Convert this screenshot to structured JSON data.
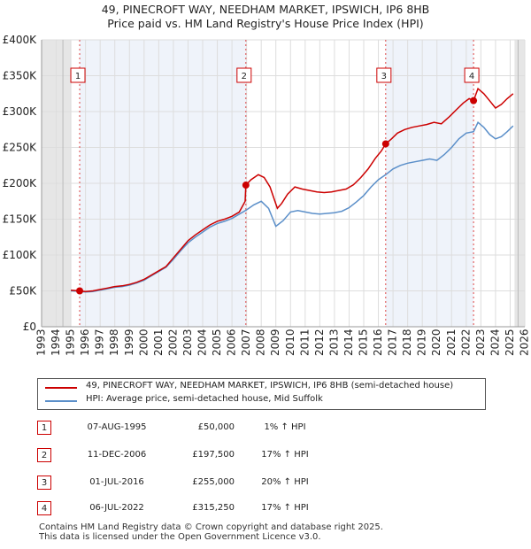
{
  "title_line1": "49, PINECROFT WAY, NEEDHAM MARKET, IPSWICH, IP6 8HB",
  "title_line2": "Price paid vs. HM Land Registry's House Price Index (HPI)",
  "chart_data": {
    "type": "line",
    "xlim": [
      1993,
      2026
    ],
    "ylim": [
      0,
      400000
    ],
    "x_ticks": [
      1993,
      1994,
      1995,
      1996,
      1997,
      1998,
      1999,
      2000,
      2001,
      2002,
      2003,
      2004,
      2005,
      2006,
      2007,
      2008,
      2009,
      2010,
      2011,
      2012,
      2013,
      2014,
      2015,
      2016,
      2017,
      2018,
      2019,
      2020,
      2021,
      2022,
      2023,
      2024,
      2025,
      2026
    ],
    "y_ticks": [
      {
        "value": 0,
        "label": "£0"
      },
      {
        "value": 50000,
        "label": "£50K"
      },
      {
        "value": 100000,
        "label": "£100K"
      },
      {
        "value": 150000,
        "label": "£150K"
      },
      {
        "value": 200000,
        "label": "£200K"
      },
      {
        "value": 250000,
        "label": "£250K"
      },
      {
        "value": 300000,
        "label": "£300K"
      },
      {
        "value": 350000,
        "label": "£350K"
      },
      {
        "value": 400000,
        "label": "£400K"
      }
    ],
    "data_range": [
      1995.0,
      2025.3
    ],
    "grid": true,
    "series": [
      {
        "name": "49, PINECROFT WAY, NEEDHAM MARKET, IPSWICH, IP6 8HB (semi-detached house)",
        "color": "#cc0000",
        "points": [
          [
            1995.0,
            51000
          ],
          [
            1995.6,
            50000
          ],
          [
            1996.0,
            49000
          ],
          [
            1996.5,
            50000
          ],
          [
            1997.0,
            52000
          ],
          [
            1997.5,
            54000
          ],
          [
            1998.0,
            56000
          ],
          [
            1998.5,
            57000
          ],
          [
            1999.0,
            59000
          ],
          [
            1999.5,
            62000
          ],
          [
            2000.0,
            66000
          ],
          [
            2000.5,
            72000
          ],
          [
            2001.0,
            78000
          ],
          [
            2001.5,
            84000
          ],
          [
            2002.0,
            96000
          ],
          [
            2002.5,
            108000
          ],
          [
            2003.0,
            120000
          ],
          [
            2003.5,
            128000
          ],
          [
            2004.0,
            135000
          ],
          [
            2004.5,
            142000
          ],
          [
            2005.0,
            147000
          ],
          [
            2005.5,
            150000
          ],
          [
            2006.0,
            154000
          ],
          [
            2006.5,
            160000
          ],
          [
            2006.9,
            175000
          ],
          [
            2006.95,
            197500
          ],
          [
            2007.3,
            205000
          ],
          [
            2007.8,
            212000
          ],
          [
            2008.2,
            208000
          ],
          [
            2008.6,
            195000
          ],
          [
            2009.1,
            165000
          ],
          [
            2009.4,
            172000
          ],
          [
            2009.8,
            185000
          ],
          [
            2010.3,
            195000
          ],
          [
            2010.8,
            192000
          ],
          [
            2011.3,
            190000
          ],
          [
            2011.8,
            188000
          ],
          [
            2012.3,
            187000
          ],
          [
            2012.8,
            188000
          ],
          [
            2013.3,
            190000
          ],
          [
            2013.8,
            192000
          ],
          [
            2014.3,
            198000
          ],
          [
            2014.8,
            208000
          ],
          [
            2015.3,
            220000
          ],
          [
            2015.8,
            235000
          ],
          [
            2016.2,
            245000
          ],
          [
            2016.5,
            255000
          ],
          [
            2016.9,
            262000
          ],
          [
            2017.3,
            270000
          ],
          [
            2017.8,
            275000
          ],
          [
            2018.3,
            278000
          ],
          [
            2018.8,
            280000
          ],
          [
            2019.3,
            282000
          ],
          [
            2019.8,
            285000
          ],
          [
            2020.3,
            283000
          ],
          [
            2020.8,
            292000
          ],
          [
            2021.3,
            302000
          ],
          [
            2021.8,
            312000
          ],
          [
            2022.2,
            318000
          ],
          [
            2022.5,
            315250
          ],
          [
            2022.8,
            332000
          ],
          [
            2023.2,
            325000
          ],
          [
            2023.6,
            315000
          ],
          [
            2024.0,
            305000
          ],
          [
            2024.4,
            310000
          ],
          [
            2024.8,
            318000
          ],
          [
            2025.2,
            325000
          ]
        ]
      },
      {
        "name": "HPI: Average price, semi-detached house, Mid Suffolk",
        "color": "#5b8fc9",
        "points": [
          [
            1995.0,
            50000
          ],
          [
            1995.5,
            49500
          ],
          [
            1996.0,
            48500
          ],
          [
            1996.5,
            49000
          ],
          [
            1997.0,
            51000
          ],
          [
            1997.5,
            53000
          ],
          [
            1998.0,
            55000
          ],
          [
            1998.5,
            56000
          ],
          [
            1999.0,
            58000
          ],
          [
            1999.5,
            61000
          ],
          [
            2000.0,
            65000
          ],
          [
            2000.5,
            71000
          ],
          [
            2001.0,
            77000
          ],
          [
            2001.5,
            83000
          ],
          [
            2002.0,
            94000
          ],
          [
            2002.5,
            106000
          ],
          [
            2003.0,
            117000
          ],
          [
            2003.5,
            125000
          ],
          [
            2004.0,
            132000
          ],
          [
            2004.5,
            139000
          ],
          [
            2005.0,
            144000
          ],
          [
            2005.5,
            147000
          ],
          [
            2006.0,
            151000
          ],
          [
            2006.5,
            157000
          ],
          [
            2007.0,
            163000
          ],
          [
            2007.5,
            170000
          ],
          [
            2008.0,
            175000
          ],
          [
            2008.5,
            165000
          ],
          [
            2009.0,
            140000
          ],
          [
            2009.5,
            148000
          ],
          [
            2010.0,
            160000
          ],
          [
            2010.5,
            162000
          ],
          [
            2011.0,
            160000
          ],
          [
            2011.5,
            158000
          ],
          [
            2012.0,
            157000
          ],
          [
            2012.5,
            158000
          ],
          [
            2013.0,
            159000
          ],
          [
            2013.5,
            161000
          ],
          [
            2014.0,
            166000
          ],
          [
            2014.5,
            174000
          ],
          [
            2015.0,
            183000
          ],
          [
            2015.5,
            195000
          ],
          [
            2016.0,
            205000
          ],
          [
            2016.5,
            212000
          ],
          [
            2017.0,
            220000
          ],
          [
            2017.5,
            225000
          ],
          [
            2018.0,
            228000
          ],
          [
            2018.5,
            230000
          ],
          [
            2019.0,
            232000
          ],
          [
            2019.5,
            234000
          ],
          [
            2020.0,
            232000
          ],
          [
            2020.5,
            240000
          ],
          [
            2021.0,
            250000
          ],
          [
            2021.5,
            262000
          ],
          [
            2022.0,
            270000
          ],
          [
            2022.5,
            272000
          ],
          [
            2022.8,
            285000
          ],
          [
            2023.2,
            278000
          ],
          [
            2023.6,
            268000
          ],
          [
            2024.0,
            262000
          ],
          [
            2024.4,
            265000
          ],
          [
            2024.8,
            272000
          ],
          [
            2025.2,
            280000
          ]
        ]
      }
    ],
    "transactions": [
      {
        "id": "1",
        "x": 1995.6,
        "price": 50000
      },
      {
        "id": "2",
        "x": 2006.95,
        "price": 197500
      },
      {
        "id": "3",
        "x": 2016.5,
        "price": 255000
      },
      {
        "id": "4",
        "x": 2022.5,
        "price": 315250
      }
    ]
  },
  "legend": [
    {
      "label": "49, PINECROFT WAY, NEEDHAM MARKET, IPSWICH, IP6 8HB (semi-detached house)",
      "color": "#cc0000"
    },
    {
      "label": "HPI: Average price, semi-detached house, Mid Suffolk",
      "color": "#5b8fc9"
    }
  ],
  "table": [
    {
      "id": "1",
      "date": "07-AUG-1995",
      "price": "£50,000",
      "hpi": "1% ↑ HPI"
    },
    {
      "id": "2",
      "date": "11-DEC-2006",
      "price": "£197,500",
      "hpi": "17% ↑ HPI"
    },
    {
      "id": "3",
      "date": "01-JUL-2016",
      "price": "£255,000",
      "hpi": "20% ↑ HPI"
    },
    {
      "id": "4",
      "date": "06-JUL-2022",
      "price": "£315,250",
      "hpi": "17% ↑ HPI"
    }
  ],
  "footer_line1": "Contains HM Land Registry data © Crown copyright and database right 2025.",
  "footer_line2": "This data is licensed under the Open Government Licence v3.0."
}
